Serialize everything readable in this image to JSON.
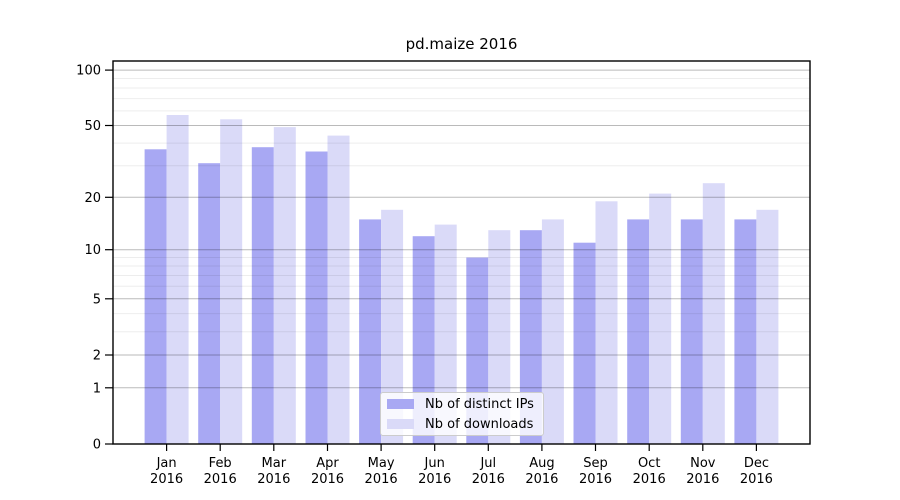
{
  "chart_data": {
    "type": "bar",
    "title": "pd.maize 2016",
    "categories": [
      "Jan",
      "Feb",
      "Mar",
      "Apr",
      "May",
      "Jun",
      "Jul",
      "Aug",
      "Sep",
      "Oct",
      "Nov",
      "Dec"
    ],
    "category_year": "2016",
    "series": [
      {
        "name": "Nb of distinct IPs",
        "color": "#a8a8f3",
        "values": [
          37,
          31,
          38,
          36,
          15,
          12,
          9,
          13,
          11,
          15,
          15,
          15
        ]
      },
      {
        "name": "Nb of downloads",
        "color": "#dadaf8",
        "values": [
          57,
          54,
          49,
          44,
          17,
          14,
          13,
          15,
          19,
          21,
          24,
          17
        ]
      }
    ],
    "y_axis": {
      "scale": "log1p",
      "min": 0,
      "max": 112,
      "major_ticks": [
        100,
        50,
        20,
        10,
        5,
        2,
        1,
        0
      ],
      "minor_gridlines": [
        90,
        80,
        70,
        60,
        40,
        30,
        9,
        8,
        7,
        6,
        4,
        3
      ]
    },
    "xlabel": "",
    "ylabel": "",
    "grid": "on",
    "legend": {
      "position": "lower center",
      "labels": [
        "Nb of distinct IPs",
        "Nb of downloads"
      ]
    }
  }
}
